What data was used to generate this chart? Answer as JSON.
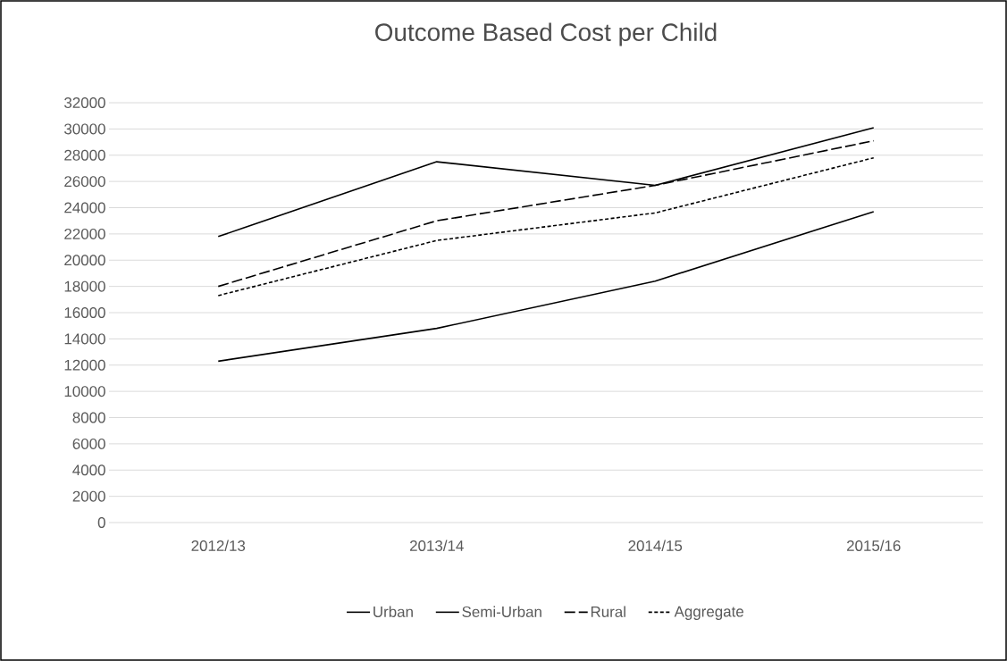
{
  "chart_data": {
    "type": "line",
    "title": "Outcome Based Cost per Child",
    "categories": [
      "2012/13",
      "2013/14",
      "2014/15",
      "2015/16"
    ],
    "series": [
      {
        "name": "Urban",
        "color": "#000000",
        "line_style": "solid",
        "values": [
          21800,
          27500,
          25700,
          30100
        ]
      },
      {
        "name": "Semi-Urban",
        "color": "#000000",
        "line_style": "solid",
        "values": [
          12300,
          14800,
          18400,
          23700
        ]
      },
      {
        "name": "Rural",
        "color": "#000000",
        "line_style": "dashed",
        "values": [
          18000,
          23000,
          25700,
          29100
        ]
      },
      {
        "name": "Aggregate",
        "color": "#000000",
        "line_style": "dotted",
        "values": [
          17300,
          21500,
          23600,
          27800
        ]
      }
    ],
    "ylim": [
      0,
      32000
    ],
    "yticks": [
      0,
      2000,
      4000,
      6000,
      8000,
      10000,
      12000,
      14000,
      16000,
      18000,
      20000,
      22000,
      24000,
      26000,
      28000,
      30000,
      32000
    ],
    "grid": "y",
    "legend": "bottom",
    "marker": "none"
  }
}
